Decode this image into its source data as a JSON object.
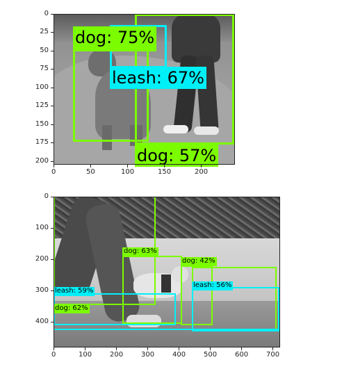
{
  "colors": {
    "dog": "#7cfc00",
    "leash": "#00f0f8"
  },
  "top_panel": {
    "yticks": [
      "0",
      "25",
      "50",
      "75",
      "100",
      "125",
      "150",
      "175",
      "200"
    ],
    "xticks": [
      "0",
      "50",
      "100",
      "150",
      "200"
    ],
    "labels": {
      "dog_a": "dog: 75%",
      "leash": "leash: 67%",
      "dog_b": "dog: 57%"
    }
  },
  "bottom_panel": {
    "yticks": [
      "0",
      "100",
      "200",
      "300",
      "400"
    ],
    "xticks": [
      "0",
      "100",
      "200",
      "300",
      "400",
      "500",
      "600",
      "700"
    ],
    "labels": {
      "dog_a": "dog: 63%",
      "dog_b": "dog: 42%",
      "leash_a": "leash: 59%",
      "leash_b": "leash: 56%",
      "dog_c": "dog: 62%"
    }
  }
}
